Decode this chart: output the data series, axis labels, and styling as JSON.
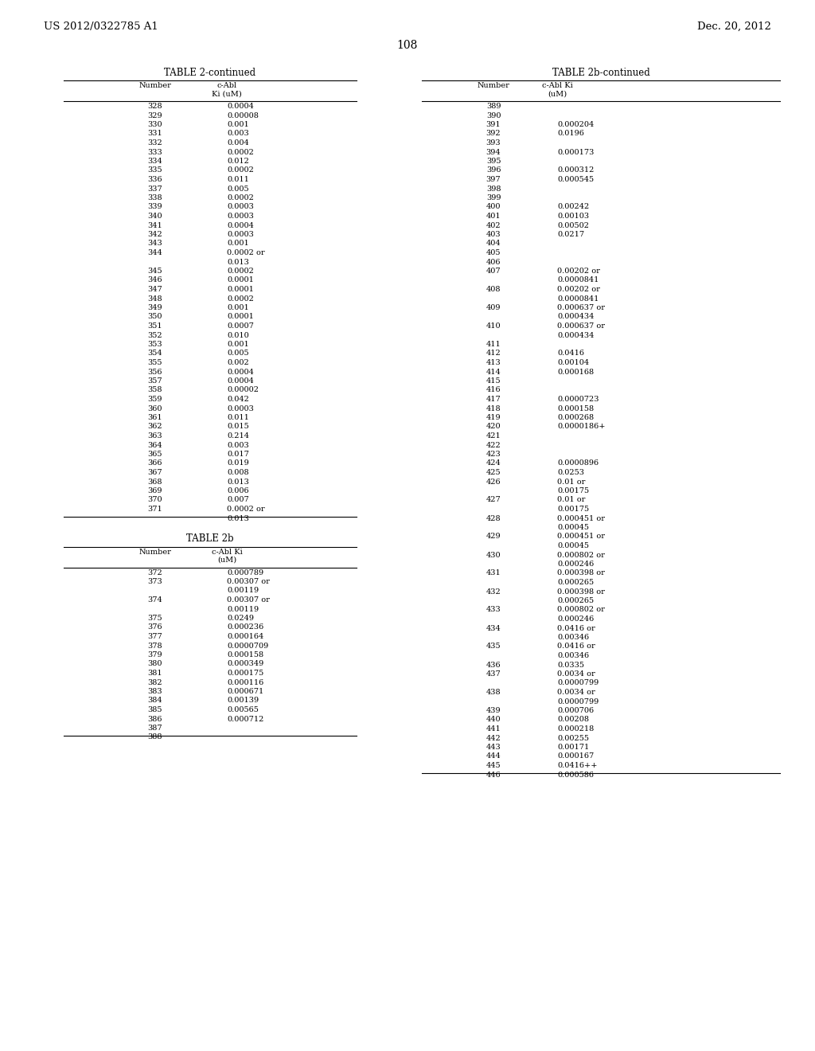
{
  "page_header_left": "US 2012/0322785 A1",
  "page_header_right": "Dec. 20, 2012",
  "page_number": "108",
  "table1_title": "TABLE 2-continued",
  "table1_data": [
    [
      "328",
      "0.0004"
    ],
    [
      "329",
      "0.00008"
    ],
    [
      "330",
      "0.001"
    ],
    [
      "331",
      "0.003"
    ],
    [
      "332",
      "0.004"
    ],
    [
      "333",
      "0.0002"
    ],
    [
      "334",
      "0.012"
    ],
    [
      "335",
      "0.0002"
    ],
    [
      "336",
      "0.011"
    ],
    [
      "337",
      "0.005"
    ],
    [
      "338",
      "0.0002"
    ],
    [
      "339",
      "0.0003"
    ],
    [
      "340",
      "0.0003"
    ],
    [
      "341",
      "0.0004"
    ],
    [
      "342",
      "0.0003"
    ],
    [
      "343",
      "0.001"
    ],
    [
      "344",
      "0.0002 or\n0.013"
    ],
    [
      "345",
      "0.0002"
    ],
    [
      "346",
      "0.0001"
    ],
    [
      "347",
      "0.0001"
    ],
    [
      "348",
      "0.0002"
    ],
    [
      "349",
      "0.001"
    ],
    [
      "350",
      "0.0001"
    ],
    [
      "351",
      "0.0007"
    ],
    [
      "352",
      "0.010"
    ],
    [
      "353",
      "0.001"
    ],
    [
      "354",
      "0.005"
    ],
    [
      "355",
      "0.002"
    ],
    [
      "356",
      "0.0004"
    ],
    [
      "357",
      "0.0004"
    ],
    [
      "358",
      "0.00002"
    ],
    [
      "359",
      "0.042"
    ],
    [
      "360",
      "0.0003"
    ],
    [
      "361",
      "0.011"
    ],
    [
      "362",
      "0.015"
    ],
    [
      "363",
      "0.214"
    ],
    [
      "364",
      "0.003"
    ],
    [
      "365",
      "0.017"
    ],
    [
      "366",
      "0.019"
    ],
    [
      "367",
      "0.008"
    ],
    [
      "368",
      "0.013"
    ],
    [
      "369",
      "0.006"
    ],
    [
      "370",
      "0.007"
    ],
    [
      "371",
      "0.0002 or\n0.013"
    ]
  ],
  "table2_title": "TABLE 2b",
  "table2_data": [
    [
      "372",
      "0.000789"
    ],
    [
      "373",
      "0.00307 or\n0.00119"
    ],
    [
      "374",
      "0.00307 or\n0.00119"
    ],
    [
      "375",
      "0.0249"
    ],
    [
      "376",
      "0.000236"
    ],
    [
      "377",
      "0.000164"
    ],
    [
      "378",
      "0.0000709"
    ],
    [
      "379",
      "0.000158"
    ],
    [
      "380",
      "0.000349"
    ],
    [
      "381",
      "0.000175"
    ],
    [
      "382",
      "0.000116"
    ],
    [
      "383",
      "0.000671"
    ],
    [
      "384",
      "0.00139"
    ],
    [
      "385",
      "0.00565"
    ],
    [
      "386",
      "0.000712"
    ],
    [
      "387",
      ""
    ],
    [
      "388",
      ""
    ]
  ],
  "table3_title": "TABLE 2b-continued",
  "table3_data": [
    [
      "389",
      ""
    ],
    [
      "390",
      ""
    ],
    [
      "391",
      "0.000204"
    ],
    [
      "392",
      "0.0196"
    ],
    [
      "393",
      ""
    ],
    [
      "394",
      "0.000173"
    ],
    [
      "395",
      ""
    ],
    [
      "396",
      "0.000312"
    ],
    [
      "397",
      "0.000545"
    ],
    [
      "398",
      ""
    ],
    [
      "399",
      ""
    ],
    [
      "400",
      "0.00242"
    ],
    [
      "401",
      "0.00103"
    ],
    [
      "402",
      "0.00502"
    ],
    [
      "403",
      "0.0217"
    ],
    [
      "404",
      ""
    ],
    [
      "405",
      ""
    ],
    [
      "406",
      ""
    ],
    [
      "407",
      "0.00202 or\n0.0000841"
    ],
    [
      "408",
      "0.00202 or\n0.0000841"
    ],
    [
      "409",
      "0.000637 or\n0.000434"
    ],
    [
      "410",
      "0.000637 or\n0.000434"
    ],
    [
      "411",
      ""
    ],
    [
      "412",
      "0.0416"
    ],
    [
      "413",
      "0.00104"
    ],
    [
      "414",
      "0.000168"
    ],
    [
      "415",
      ""
    ],
    [
      "416",
      ""
    ],
    [
      "417",
      "0.0000723"
    ],
    [
      "418",
      "0.000158"
    ],
    [
      "419",
      "0.000268"
    ],
    [
      "420",
      "0.0000186+"
    ],
    [
      "421",
      ""
    ],
    [
      "422",
      ""
    ],
    [
      "423",
      ""
    ],
    [
      "424",
      "0.0000896"
    ],
    [
      "425",
      "0.0253"
    ],
    [
      "426",
      "0.01 or\n0.00175"
    ],
    [
      "427",
      "0.01 or\n0.00175"
    ],
    [
      "428",
      "0.000451 or\n0.00045"
    ],
    [
      "429",
      "0.000451 or\n0.00045"
    ],
    [
      "430",
      "0.000802 or\n0.000246"
    ],
    [
      "431",
      "0.000398 or\n0.000265"
    ],
    [
      "432",
      "0.000398 or\n0.000265"
    ],
    [
      "433",
      "0.000802 or\n0.000246"
    ],
    [
      "434",
      "0.0416 or\n0.00346"
    ],
    [
      "435",
      "0.0416 or\n0.00346"
    ],
    [
      "436",
      "0.0335"
    ],
    [
      "437",
      "0.0034 or\n0.0000799"
    ],
    [
      "438",
      "0.0034 or\n0.0000799"
    ],
    [
      "439",
      "0.000706"
    ],
    [
      "440",
      "0.00208"
    ],
    [
      "441",
      "0.000218"
    ],
    [
      "442",
      "0.00255"
    ],
    [
      "443",
      "0.00171"
    ],
    [
      "444",
      "0.000167"
    ],
    [
      "445",
      "0.0416++"
    ],
    [
      "446",
      "0.000586"
    ]
  ],
  "bg_color": "#ffffff",
  "text_color": "#000000",
  "font_size": 7.0,
  "title_font_size": 8.5,
  "header_font_size": 9.5,
  "page_num_font_size": 10.0
}
